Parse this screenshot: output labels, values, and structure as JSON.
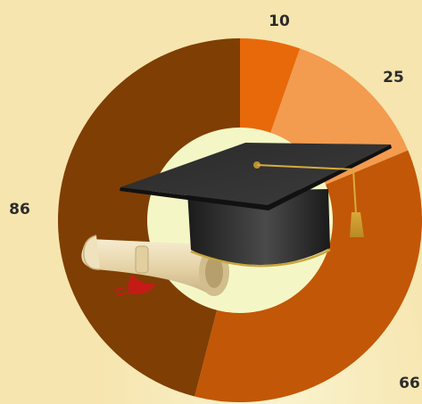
{
  "chart_data": {
    "type": "pie",
    "variant": "donut",
    "slices": [
      {
        "label": "10",
        "value": 10,
        "color": "#e8690a"
      },
      {
        "label": "25",
        "value": 25,
        "color": "#f39b4f"
      },
      {
        "label": "66",
        "value": 66,
        "color": "#c25707"
      },
      {
        "label": "86",
        "value": 86,
        "color": "#7f3e04"
      }
    ],
    "center_color": "#f4f7c5",
    "center_image": "graduation-cap-and-diploma-icon",
    "background_color": "#f6e5ae"
  }
}
